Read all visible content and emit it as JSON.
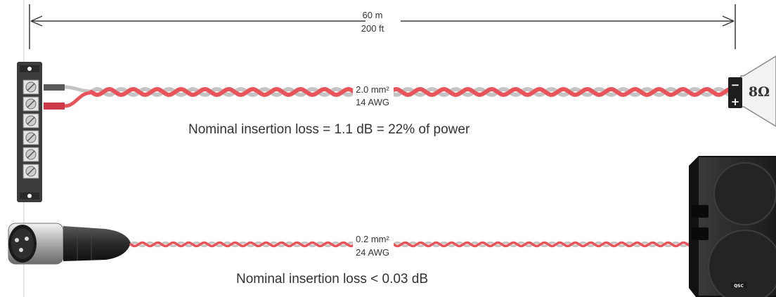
{
  "distance": {
    "metric": "60 m",
    "imperial": "200 ft"
  },
  "speaker_cable": {
    "gauge_metric": "2.0 mm²",
    "gauge_awg": "14 AWG",
    "loss_note": "Nominal insertion loss = 1.1 dB = 22% of power",
    "impedance": "8Ω",
    "terminal_minus": "−",
    "terminal_plus": "+"
  },
  "signal_cable": {
    "gauge_metric": "0.2 mm²",
    "gauge_awg": "24 AWG",
    "loss_note": "Nominal insertion loss < 0.03 dB"
  },
  "cabinet": {
    "brand": "QSC"
  },
  "icons": [
    "terminal-strip-icon",
    "speaker-driver-icon",
    "xlr-connector-icon",
    "loudspeaker-cabinet-icon"
  ],
  "colors": {
    "wire_red": "#e8545a",
    "wire_gray": "#c4c4c4",
    "dimension_line": "#3a3a3a",
    "text": "#333333"
  }
}
